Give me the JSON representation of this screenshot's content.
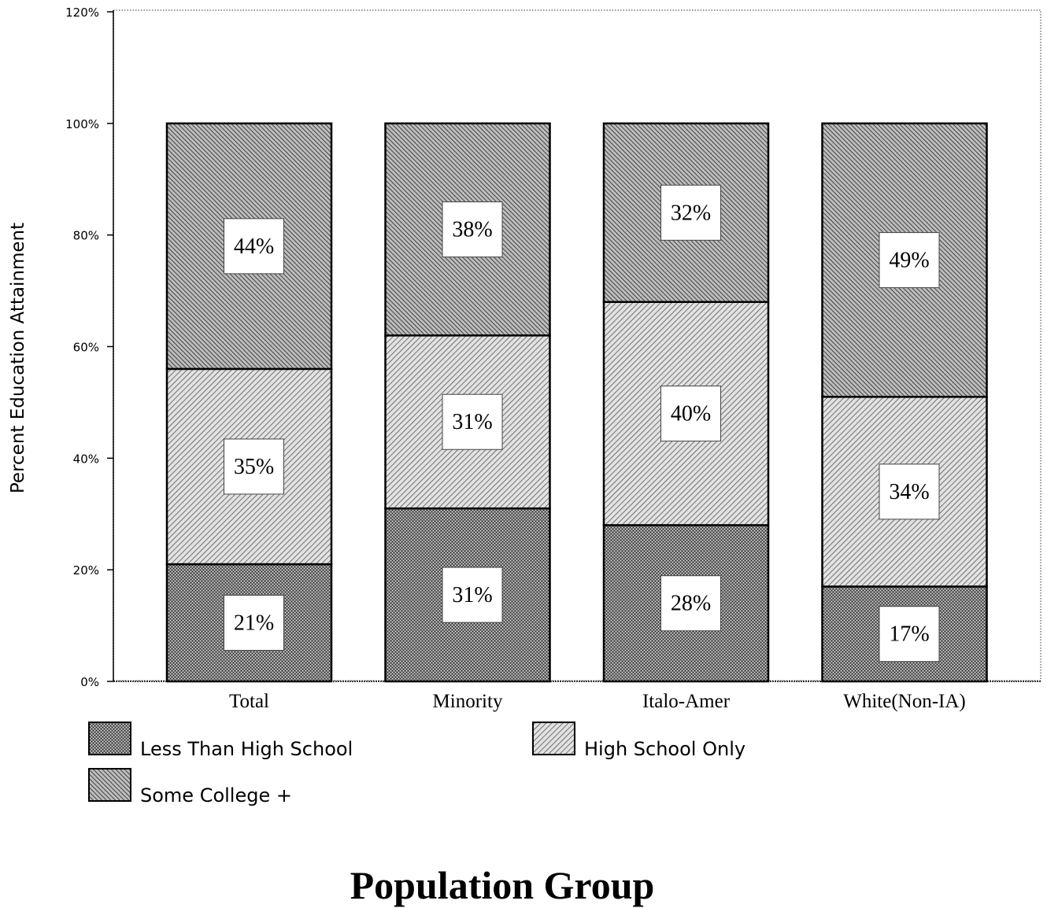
{
  "chart_data": {
    "type": "bar",
    "stacked": true,
    "categories": [
      "Total",
      "Minority",
      "Italo-Amer",
      "White(Non-IA)"
    ],
    "series": [
      {
        "name": "Less Than High School",
        "values": [
          21,
          31,
          28,
          17
        ],
        "labels": [
          "21%",
          "31%",
          "28%",
          "17%"
        ],
        "pattern": "dense-crosshatch"
      },
      {
        "name": "High School Only",
        "values": [
          35,
          31,
          40,
          34
        ],
        "labels": [
          "35%",
          "31%",
          "40%",
          "34%"
        ],
        "pattern": "light-diagonal"
      },
      {
        "name": "Some College +",
        "values": [
          44,
          38,
          32,
          49
        ],
        "labels": [
          "44%",
          "38%",
          "32%",
          "49%"
        ],
        "pattern": "dark-diagonal"
      }
    ],
    "yticks": [
      "0%",
      "20%",
      "40%",
      "60%",
      "80%",
      "100%",
      "120%"
    ],
    "ylim": [
      0,
      120
    ],
    "ylabel": "Percent Education Attainment",
    "xlabel": "Population Group",
    "legend_position": "bottom-left",
    "grid": false
  }
}
